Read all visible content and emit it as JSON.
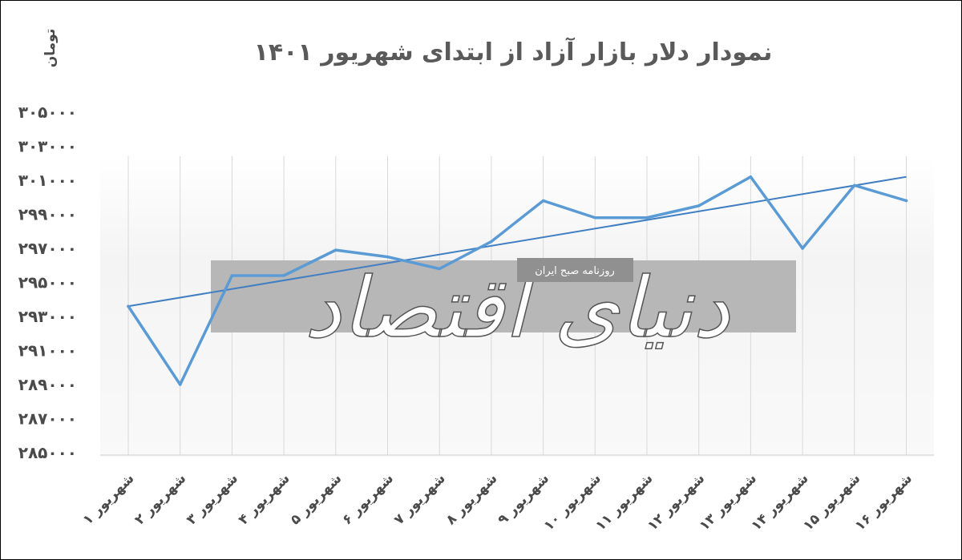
{
  "chart_data": {
    "type": "line",
    "title": "نمودار دلار بازار آزاد از ابتدای شهریور ۱۴۰۱",
    "ylabel": "تومان",
    "xlabel": "",
    "categories": [
      "شهریور ۱",
      "شهریور ۲",
      "شهریور ۳",
      "شهریور ۴",
      "شهریور ۵",
      "شهریور ۶",
      "شهریور ۷",
      "شهریور ۸",
      "شهریور ۹",
      "شهریور ۱۰",
      "شهریور ۱۱",
      "شهریور ۱۲",
      "شهریور ۱۳",
      "شهریور ۱۴",
      "شهریور ۱۵",
      "شهریور ۱۶"
    ],
    "y_tick_labels": [
      "۳۰۵۰۰۰",
      "۳۰۳۰۰۰",
      "۳۰۱۰۰۰",
      "۲۹۹۰۰۰",
      "۲۹۷۰۰۰",
      "۲۹۵۰۰۰",
      "۲۹۳۰۰۰",
      "۲۹۱۰۰۰",
      "۲۸۹۰۰۰",
      "۲۸۷۰۰۰",
      "۲۸۵۰۰۰"
    ],
    "ylim": [
      285000,
      305000
    ],
    "series": [
      {
        "values": [
          293600,
          289000,
          295400,
          295400,
          296900,
          296500,
          295800,
          297400,
          299800,
          298800,
          298800,
          299500,
          301200,
          297000,
          300700,
          299800
        ]
      }
    ],
    "trendline": {
      "start": 293600,
      "end": 301200
    },
    "grid": {
      "horizontal": false,
      "vertical": true
    },
    "legend": "none",
    "colors": {
      "line": "#5b9bd5",
      "trend": "#3f7fc2",
      "grid": "#d9d9d9",
      "text": "#4a4a4a"
    }
  },
  "watermark": {
    "brand": "دنیای اقتصاد",
    "tagline": "روزنامه صبح ایران"
  }
}
